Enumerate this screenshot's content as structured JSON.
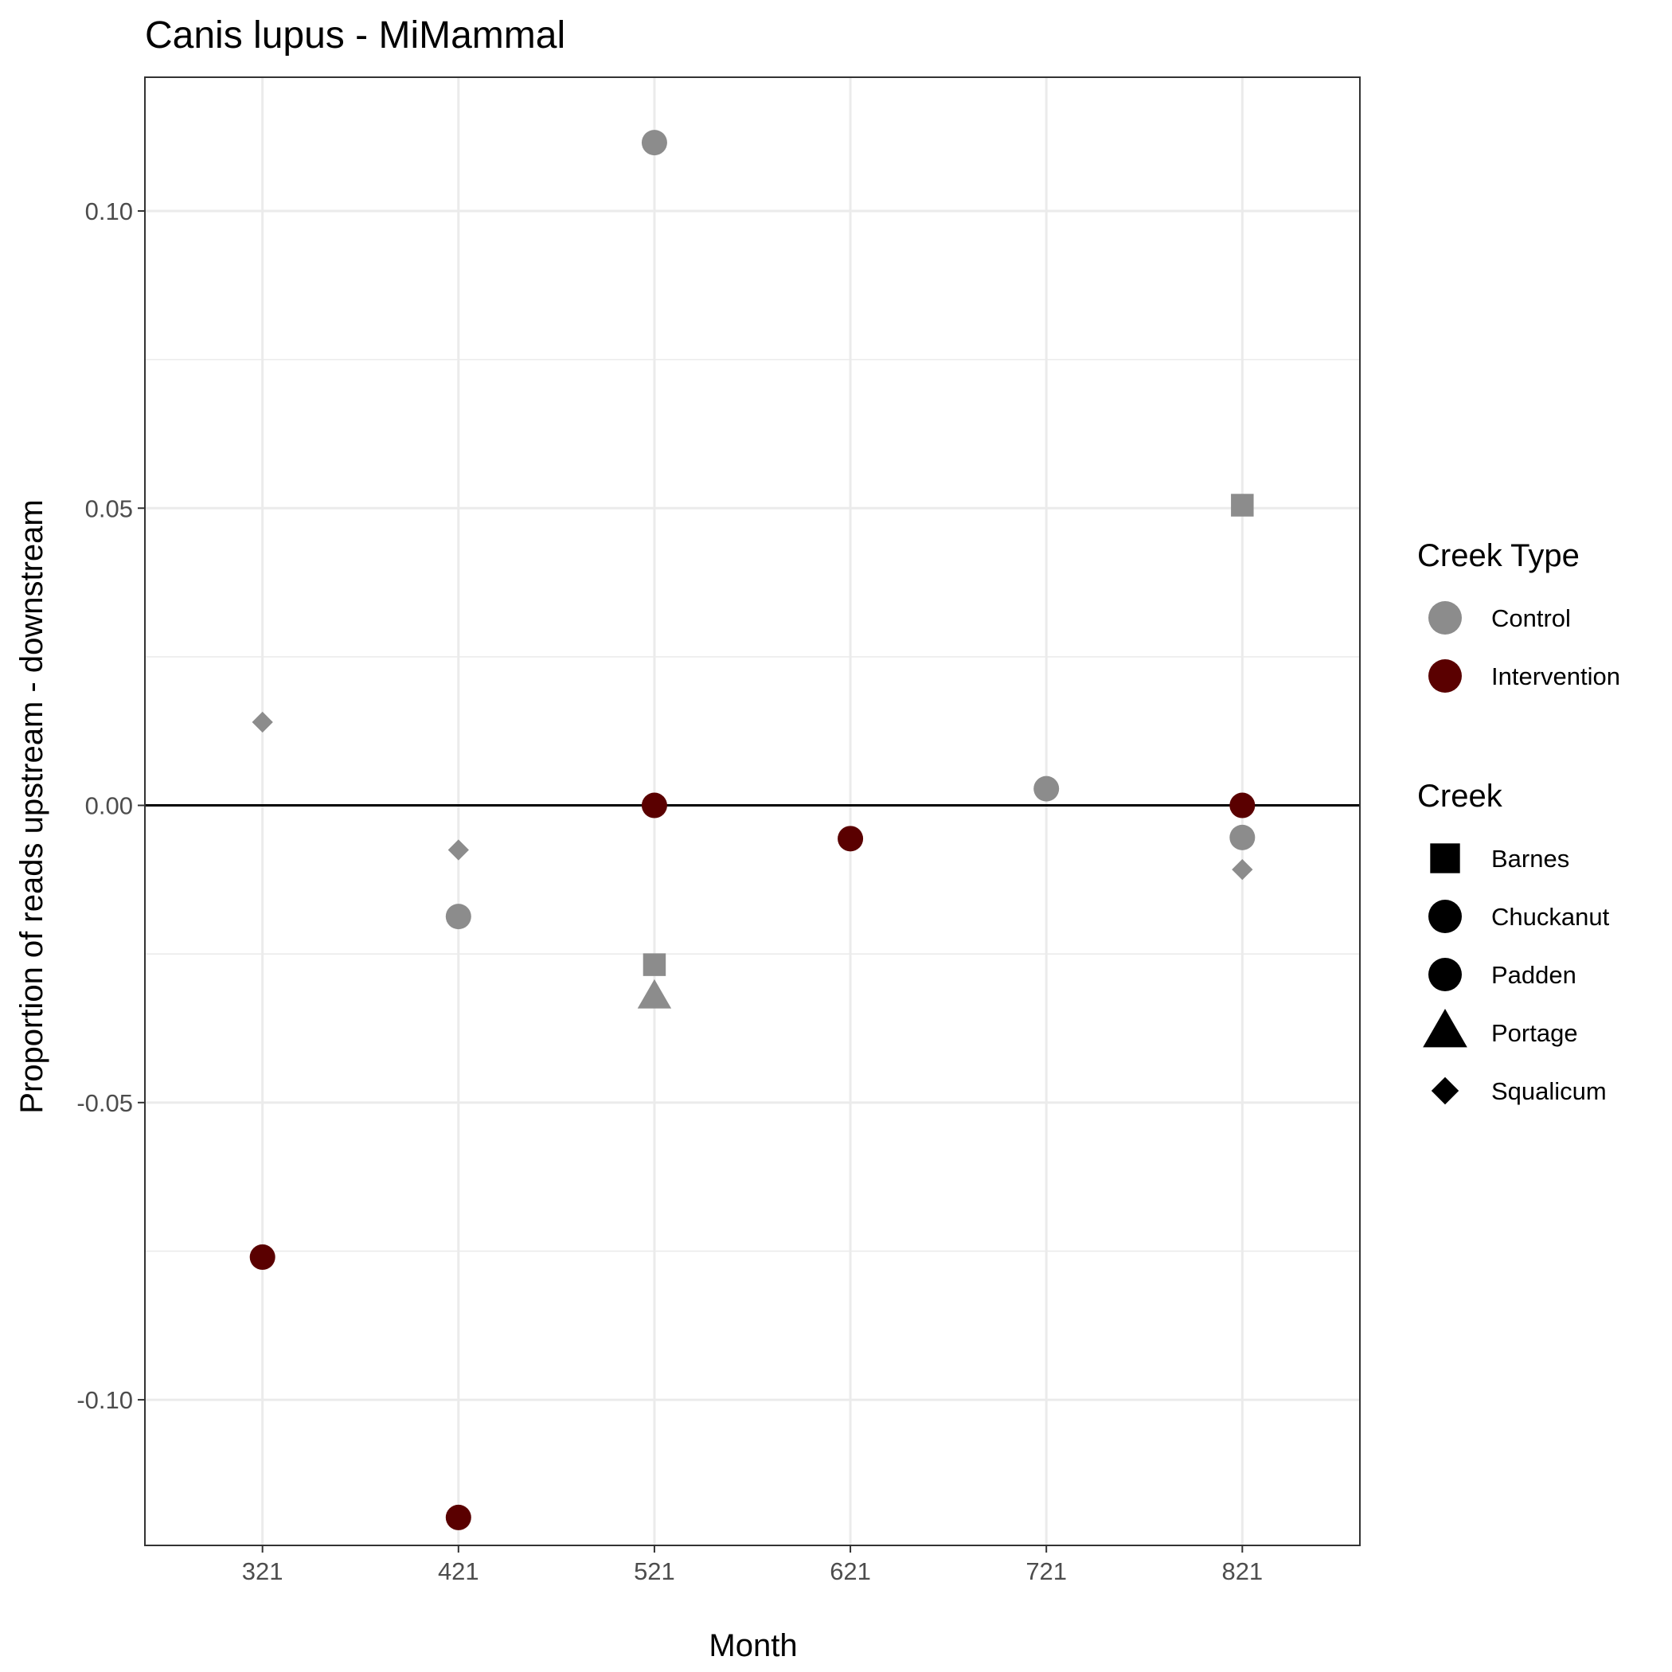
{
  "chart_data": {
    "type": "scatter",
    "title": "Canis lupus - MiMammal",
    "xlabel": "Month",
    "ylabel": "Proportion of reads upstream - downstream",
    "x_ticks": [
      "321",
      "421",
      "521",
      "621",
      "721",
      "821"
    ],
    "y_ticks": [
      {
        "value": 0.1,
        "label": "0.10"
      },
      {
        "value": 0.05,
        "label": "0.05"
      },
      {
        "value": 0.0,
        "label": "0.00"
      },
      {
        "value": -0.05,
        "label": "-0.05"
      },
      {
        "value": -0.1,
        "label": "-0.10"
      }
    ],
    "ylim": [
      -0.1245,
      0.1225
    ],
    "x_index_range": [
      -0.6,
      5.6
    ],
    "grid": true,
    "reference_line_y": 0,
    "legend_position": "right",
    "colors": {
      "Control": "#8c8c8c",
      "Intervention": "#5a0000",
      "legend_shape": "#000000",
      "grid": "#ebebeb",
      "panel_border": "#333333"
    },
    "legends": {
      "creek_type": {
        "title": "Creek Type",
        "entries": [
          {
            "label": "Control",
            "color": "#8c8c8c"
          },
          {
            "label": "Intervention",
            "color": "#5a0000"
          }
        ]
      },
      "creek": {
        "title": "Creek",
        "entries": [
          {
            "label": "Barnes",
            "shape": "square"
          },
          {
            "label": "Chuckanut",
            "shape": "circle"
          },
          {
            "label": "Padden",
            "shape": "circle"
          },
          {
            "label": "Portage",
            "shape": "triangle"
          },
          {
            "label": "Squalicum",
            "shape": "diamond"
          }
        ]
      }
    },
    "points": [
      {
        "month": "321",
        "creek_type": "Control",
        "shape": "diamond",
        "y": 0.014
      },
      {
        "month": "321",
        "creek_type": "Intervention",
        "shape": "circle",
        "y": -0.076
      },
      {
        "month": "421",
        "creek_type": "Control",
        "shape": "diamond",
        "y": -0.0075
      },
      {
        "month": "421",
        "creek_type": "Control",
        "shape": "circle",
        "y": -0.0187
      },
      {
        "month": "421",
        "creek_type": "Intervention",
        "shape": "circle",
        "y": -0.1198
      },
      {
        "month": "521",
        "creek_type": "Control",
        "shape": "circle",
        "y": 0.1115
      },
      {
        "month": "521",
        "creek_type": "Intervention",
        "shape": "circle",
        "y": 0.0
      },
      {
        "month": "521",
        "creek_type": "Control",
        "shape": "square",
        "y": -0.0268
      },
      {
        "month": "521",
        "creek_type": "Control",
        "shape": "triangle",
        "y": -0.0323
      },
      {
        "month": "621",
        "creek_type": "Intervention",
        "shape": "circle",
        "y": -0.0056
      },
      {
        "month": "721",
        "creek_type": "Control",
        "shape": "circle",
        "y": 0.0028
      },
      {
        "month": "821",
        "creek_type": "Control",
        "shape": "square",
        "y": 0.0505
      },
      {
        "month": "821",
        "creek_type": "Intervention",
        "shape": "circle",
        "y": 0.0
      },
      {
        "month": "821",
        "creek_type": "Control",
        "shape": "circle",
        "y": -0.0054
      },
      {
        "month": "821",
        "creek_type": "Control",
        "shape": "diamond",
        "y": -0.0108
      }
    ]
  }
}
